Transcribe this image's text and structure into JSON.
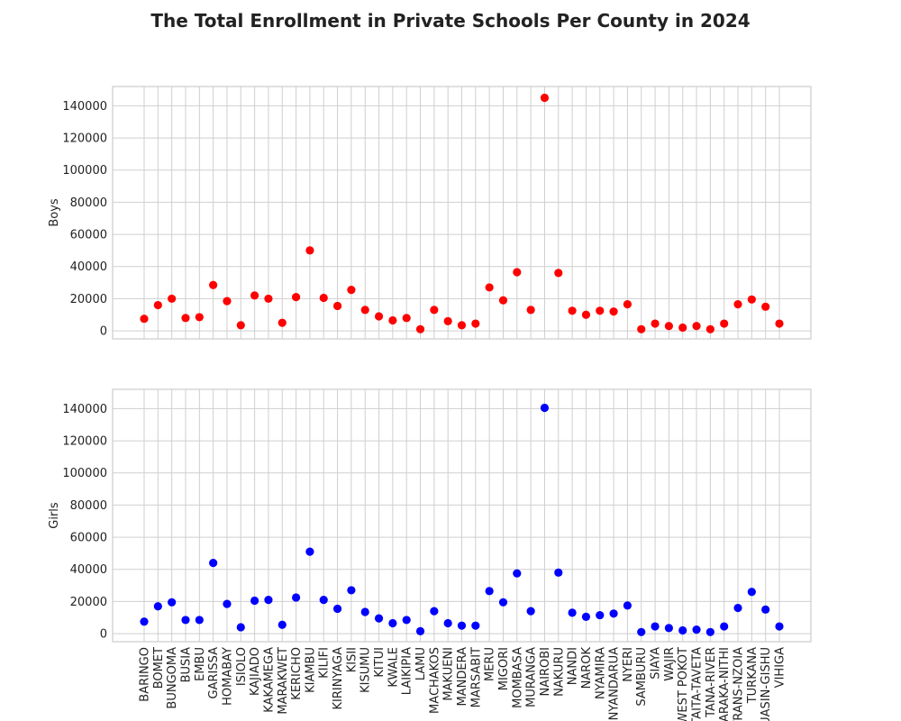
{
  "chart_data": {
    "type": "scatter",
    "title": "The Total Enrollment in Private Schools Per County in 2024",
    "categories": [
      "BARINGO",
      "BOMET",
      "BUNGOMA",
      "BUSIA",
      "EMBU",
      "GARISSA",
      "HOMABAY",
      "ISIOLO",
      "KAJIADO",
      "KAKAMEGA",
      "MARAKWET",
      "KERICHO",
      "KIAMBU",
      "KILIFI",
      "KIRINYAGA",
      "KISII",
      "KISUMU",
      "KITUI",
      "KWALE",
      "LAIKIPIA",
      "LAMU",
      "MACHAKOS",
      "MAKUENI",
      "MANDERA",
      "MARSABIT",
      "MERU",
      "MIGORI",
      "MOMBASA",
      "MURANGA",
      "NAIROBI",
      "NAKURU",
      "NANDI",
      "NAROK",
      "NYAMIRA",
      "NYANDARUA",
      "NYERI",
      "SAMBURU",
      "SIAYA",
      "WAJIR",
      "WEST POKOT",
      "TAITA-TAVETA",
      "TANA-RIVER",
      "THARAKA-NITHI",
      "TRANS-NZOIA",
      "TURKANA",
      "UASIN-GISHU",
      "VIHIGA"
    ],
    "series": [
      {
        "name": "Boys",
        "color": "#ff0000",
        "values": [
          7500,
          16000,
          20000,
          8000,
          8500,
          28500,
          18500,
          3500,
          22000,
          20000,
          5000,
          21000,
          50000,
          20500,
          15500,
          25500,
          13000,
          9000,
          6500,
          8000,
          1000,
          13000,
          6000,
          3500,
          4500,
          27000,
          19000,
          36500,
          13000,
          145000,
          36000,
          12500,
          10000,
          12500,
          12000,
          16500,
          1000,
          4500,
          3000,
          2000,
          3000,
          1000,
          4500,
          16500,
          19500,
          15000,
          4500
        ]
      },
      {
        "name": "Girls",
        "color": "#0000ff",
        "values": [
          7500,
          17000,
          19500,
          8500,
          8500,
          44000,
          18500,
          4000,
          20500,
          21000,
          5500,
          22500,
          51000,
          21000,
          15500,
          27000,
          13500,
          9500,
          6500,
          8500,
          1500,
          14000,
          6500,
          5000,
          5000,
          26500,
          19500,
          37500,
          14000,
          140500,
          38000,
          13000,
          10500,
          11500,
          12500,
          17500,
          1000,
          4500,
          3500,
          2000,
          2500,
          1000,
          4500,
          16000,
          26000,
          15000,
          4500
        ]
      }
    ],
    "ylabels": [
      "Boys",
      "Girls"
    ],
    "ylim": [
      -5000,
      152000
    ],
    "yticks": [
      "0",
      "20000",
      "40000",
      "60000",
      "80000",
      "100000",
      "120000",
      "140000"
    ],
    "grid": true,
    "layout": "two vertically stacked subplots sharing x-axis"
  }
}
